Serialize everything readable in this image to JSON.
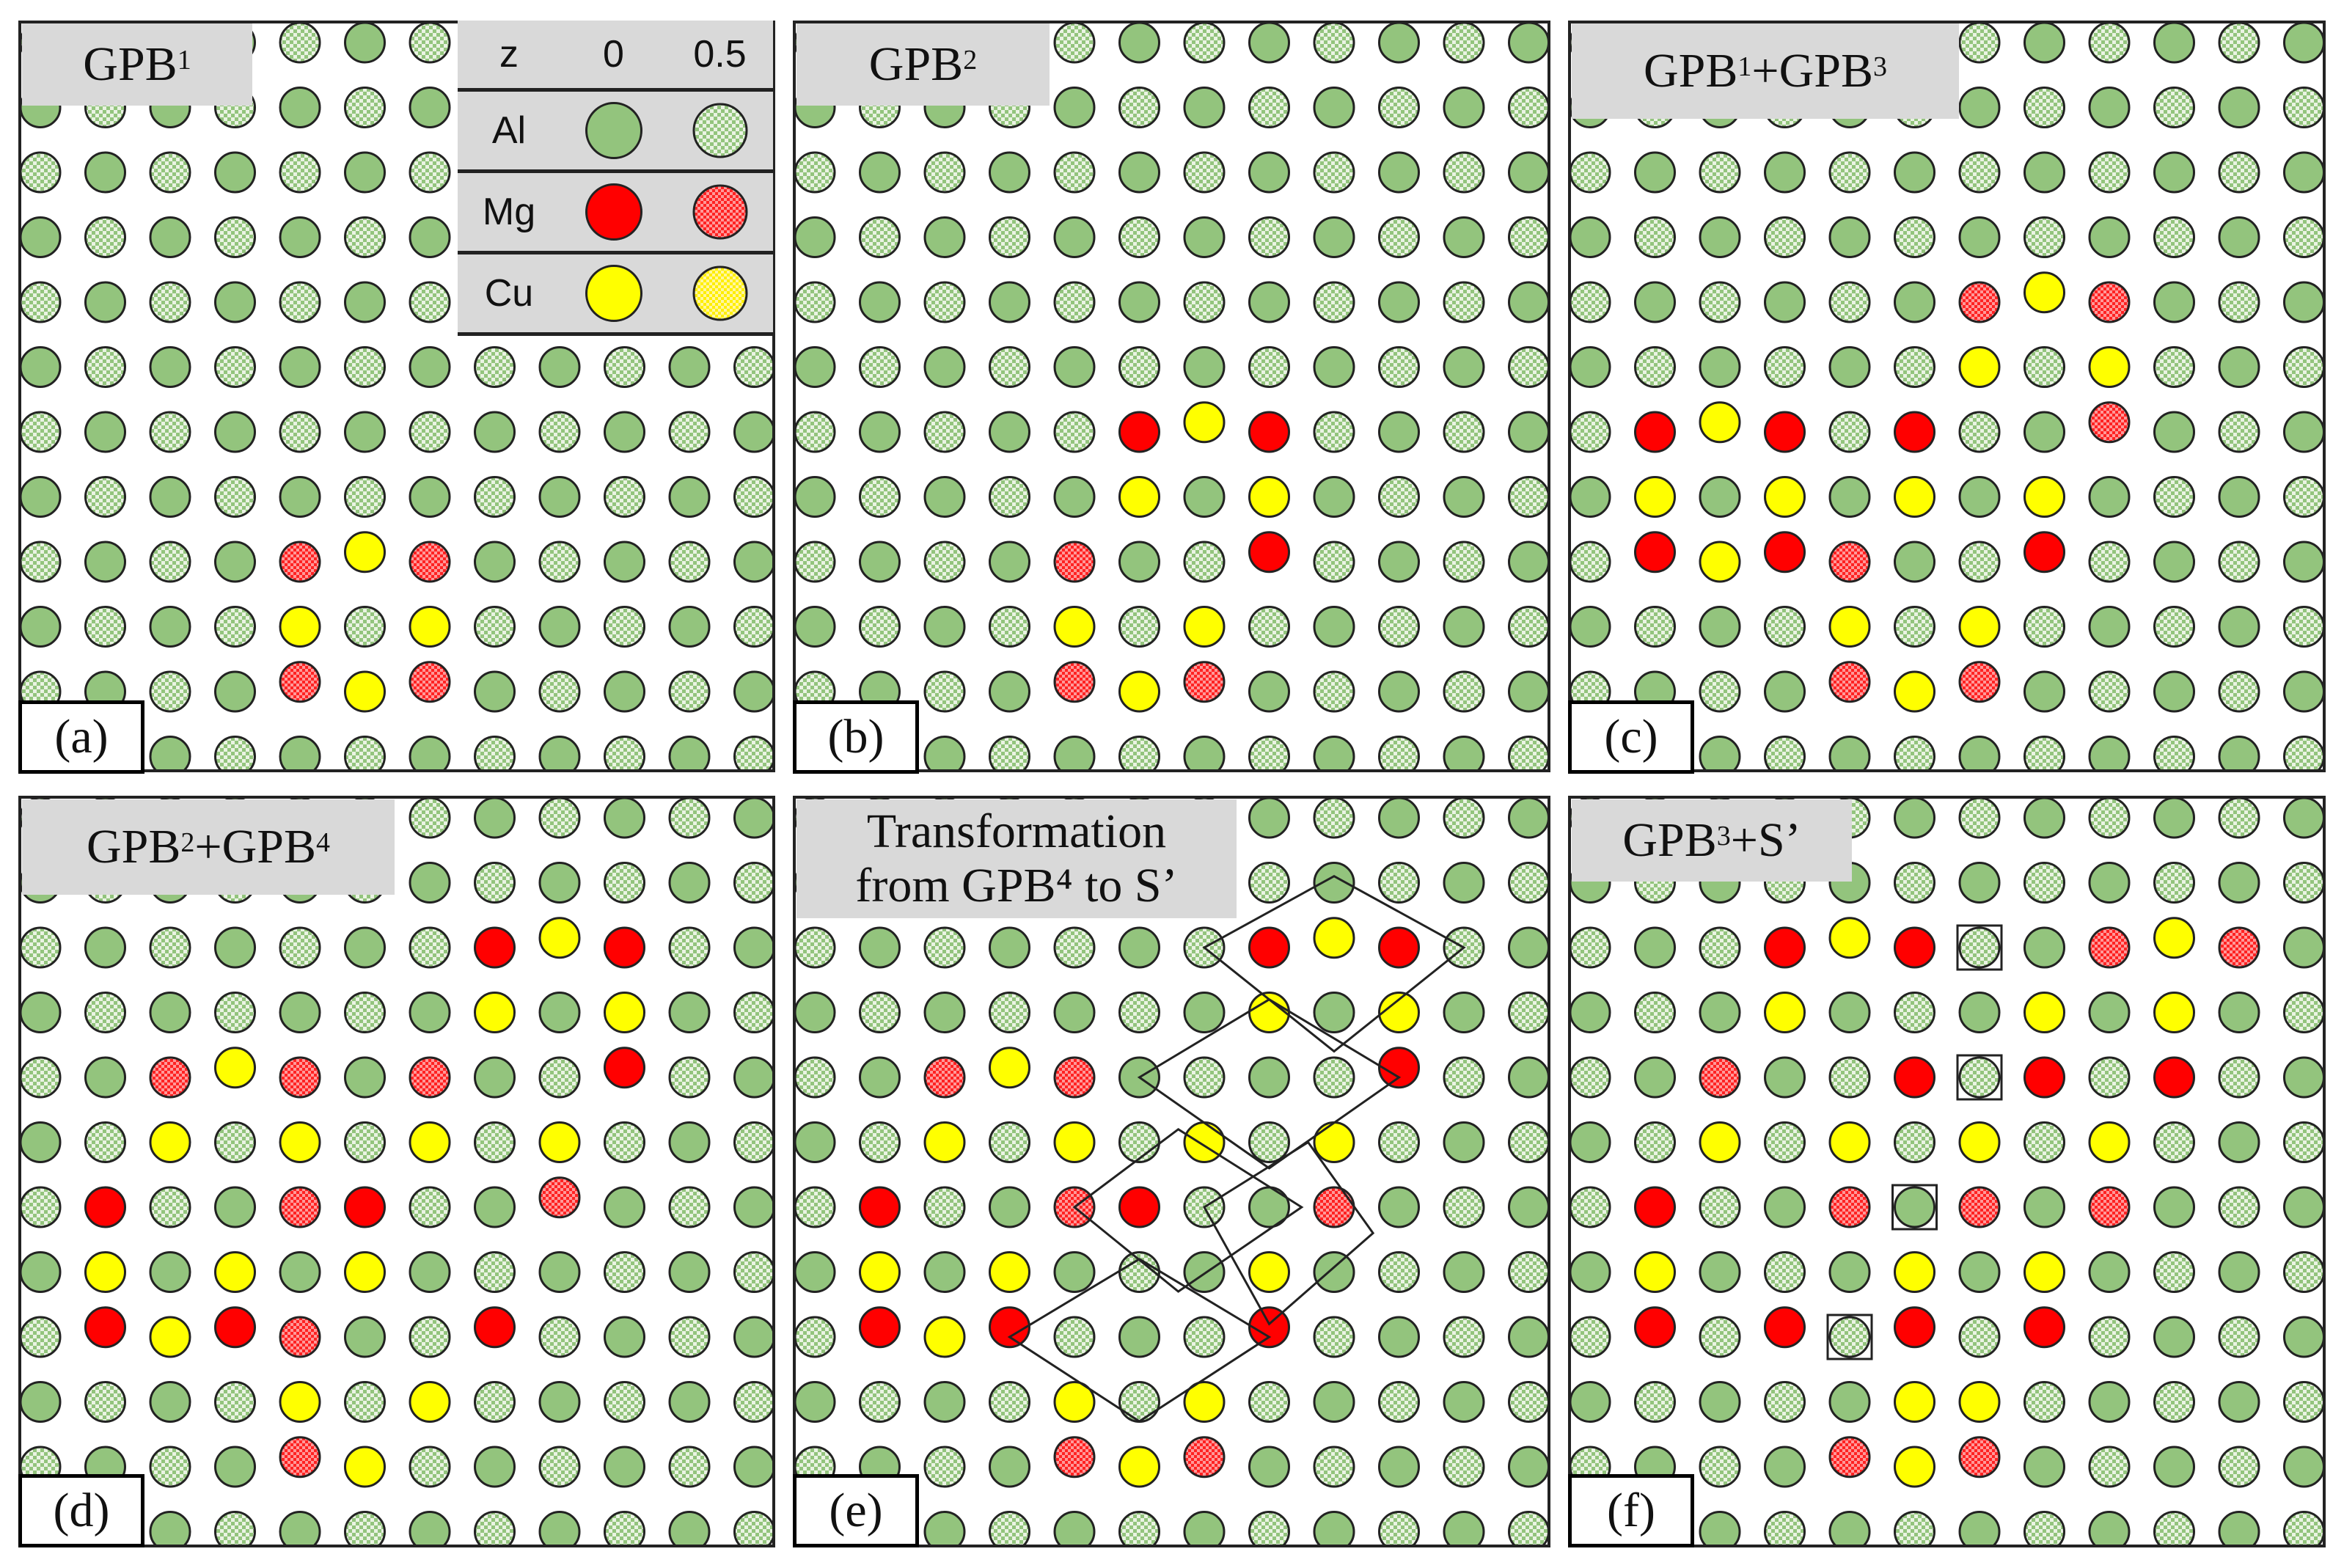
{
  "panels": [
    {
      "label": "(a)",
      "title_parts": [
        [
          "GPB",
          "1"
        ]
      ],
      "two_line": false
    },
    {
      "label": "(b)",
      "title_parts": [
        [
          "GPB",
          "2"
        ]
      ],
      "two_line": false
    },
    {
      "label": "(c)",
      "title_parts": [
        [
          "GPB",
          "1"
        ],
        [
          "+GPB",
          "3"
        ]
      ],
      "two_line": false
    },
    {
      "label": "(d)",
      "title_parts": [
        [
          "GPB",
          "2"
        ],
        [
          "+GPB",
          "4"
        ]
      ],
      "two_line": false
    },
    {
      "label": "(e)",
      "title_lines": [
        "Transformation",
        "from GPB⁴ to S’"
      ],
      "two_line": true
    },
    {
      "label": "(f)",
      "title_parts": [
        [
          "GPB",
          "3"
        ],
        [
          "+S’",
          ""
        ]
      ],
      "two_line": false
    }
  ],
  "legend": {
    "header": {
      "z": "z",
      "v0": "0",
      "v05": "0.5"
    },
    "rows": [
      {
        "name": "Al",
        "color": "#93c47d"
      },
      {
        "name": "Mg",
        "color": "#ff0000"
      },
      {
        "name": "Cu",
        "color": "#ffff00"
      }
    ]
  },
  "colors": {
    "al": "#93c47d",
    "mg": "#ff0000",
    "cu": "#ffff00",
    "outline": "#222222",
    "title_bg": "#d9d9d9"
  }
}
